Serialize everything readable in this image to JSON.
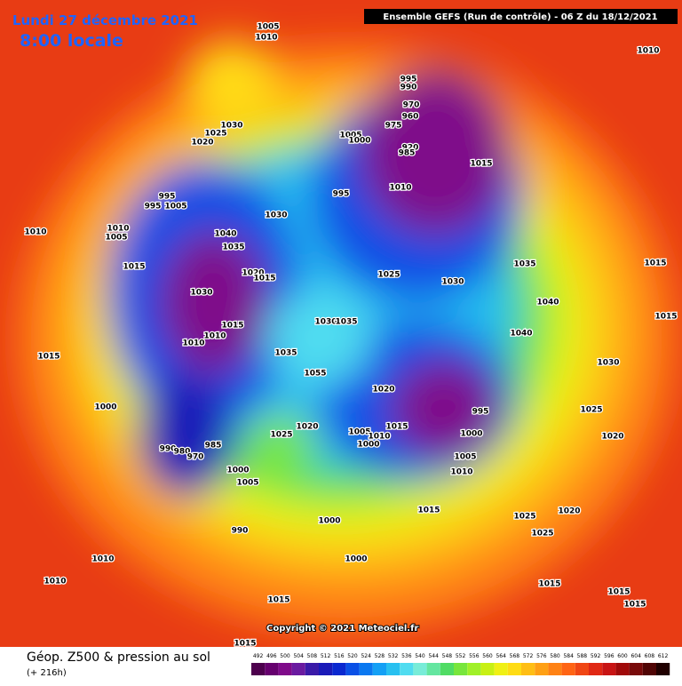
{
  "header": {
    "date": "Lundi 27 décembre 2021",
    "time": "8:00 locale",
    "run": "Ensemble GEFS  (Run de contrôle)  -  06 Z du 18/12/2021"
  },
  "copyright": "Copyright © 2021 Meteociel.fr",
  "legend": {
    "title": "Géop. Z500 & pression au sol",
    "lead": "(+ 216h)",
    "scale": [
      492,
      496,
      500,
      504,
      508,
      512,
      516,
      520,
      524,
      528,
      532,
      536,
      540,
      544,
      548,
      552,
      556,
      560,
      564,
      568,
      572,
      576,
      580,
      584,
      588,
      592,
      596,
      600,
      604,
      608,
      612
    ],
    "colors": [
      "#4d004d",
      "#66006e",
      "#7f0a8a",
      "#6a1aa0",
      "#3a1aa8",
      "#1a1ab8",
      "#0a28d0",
      "#0a50e6",
      "#0a78f0",
      "#14a0f5",
      "#28c0f0",
      "#50dcf0",
      "#78ecd8",
      "#64e6a0",
      "#50dc64",
      "#78e63c",
      "#a0f028",
      "#c8f014",
      "#f0f014",
      "#ffdc14",
      "#ffbe14",
      "#ffa014",
      "#ff8214",
      "#ff6414",
      "#f04614",
      "#e02814",
      "#c81414",
      "#a00a0a",
      "#780a0a",
      "#500505",
      "#200000"
    ]
  },
  "isobar_labels": [
    "1005",
    "1010",
    "1010",
    "995",
    "990",
    "970",
    "960",
    "975",
    "1030",
    "1025",
    "1020",
    "1005",
    "1000",
    "920",
    "985",
    "1015",
    "1010",
    "995",
    "995",
    "1005",
    "1030",
    "995",
    "1010",
    "1010",
    "1040",
    "1005",
    "1035",
    "1015",
    "1020",
    "1015",
    "1025",
    "1030",
    "1035",
    "1015",
    "1030",
    "1040",
    "1015",
    "1015",
    "1010",
    "1010",
    "1030",
    "1035",
    "1040",
    "1015",
    "1035",
    "1055",
    "1030",
    "1020",
    "1000",
    "1025",
    "995",
    "1015",
    "1020",
    "1025",
    "1000",
    "1005",
    "1010",
    "1020",
    "1000",
    "990",
    "985",
    "980",
    "970",
    "1005",
    "1010",
    "1000",
    "1005",
    "990",
    "1000",
    "1015",
    "1025",
    "1020",
    "1025",
    "1000",
    "1010",
    "1010",
    "1015",
    "1015",
    "1015",
    "1015",
    "1015"
  ]
}
